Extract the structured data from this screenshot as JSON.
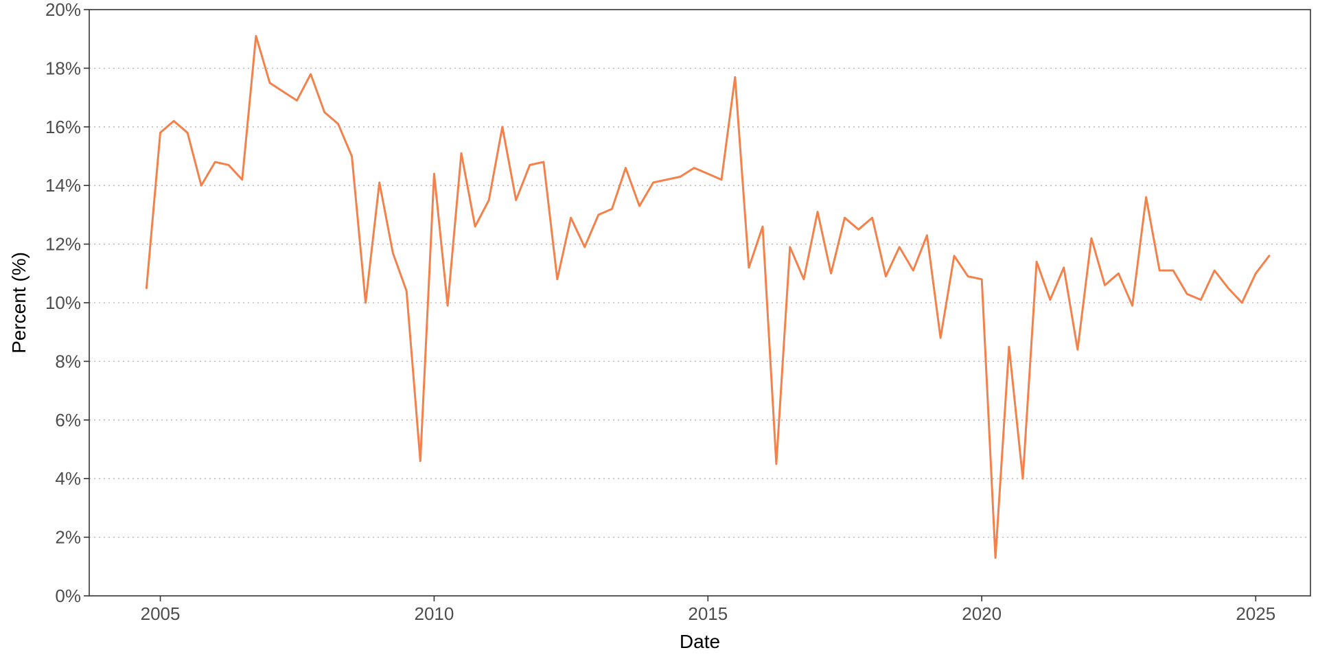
{
  "chart_data": {
    "type": "line",
    "xlabel": "Date",
    "ylabel": "Percent (%)",
    "xlim": [
      "2003-09-15",
      "2026-01-01"
    ],
    "ylim": [
      0,
      20
    ],
    "x_ticks": [
      {
        "date": "2005-01-01",
        "label": "2005"
      },
      {
        "date": "2010-01-01",
        "label": "2010"
      },
      {
        "date": "2015-01-01",
        "label": "2015"
      },
      {
        "date": "2020-01-01",
        "label": "2020"
      },
      {
        "date": "2025-01-01",
        "label": "2025"
      }
    ],
    "y_ticks": [
      {
        "value": 0,
        "label": "0%"
      },
      {
        "value": 2,
        "label": "2%"
      },
      {
        "value": 4,
        "label": "4%"
      },
      {
        "value": 6,
        "label": "6%"
      },
      {
        "value": 8,
        "label": "8%"
      },
      {
        "value": 10,
        "label": "10%"
      },
      {
        "value": 12,
        "label": "12%"
      },
      {
        "value": 14,
        "label": "14%"
      },
      {
        "value": 16,
        "label": "16%"
      },
      {
        "value": 18,
        "label": "18%"
      },
      {
        "value": 20,
        "label": "20%"
      }
    ],
    "grid": "horizontal-dotted",
    "legend": "none",
    "series": [
      {
        "color": "#f4804a",
        "x": [
          "2004-10-01",
          "2005-01-01",
          "2005-04-01",
          "2005-07-01",
          "2005-10-01",
          "2006-01-01",
          "2006-04-01",
          "2006-07-01",
          "2006-10-01",
          "2007-01-01",
          "2007-04-01",
          "2007-07-01",
          "2007-10-01",
          "2008-01-01",
          "2008-04-01",
          "2008-07-01",
          "2008-10-01",
          "2009-01-01",
          "2009-04-01",
          "2009-07-01",
          "2009-10-01",
          "2010-01-01",
          "2010-04-01",
          "2010-07-01",
          "2010-10-01",
          "2011-01-01",
          "2011-04-01",
          "2011-07-01",
          "2011-10-01",
          "2012-01-01",
          "2012-04-01",
          "2012-07-01",
          "2012-10-01",
          "2013-01-01",
          "2013-04-01",
          "2013-07-01",
          "2013-10-01",
          "2014-01-01",
          "2014-04-01",
          "2014-07-01",
          "2014-10-01",
          "2015-01-01",
          "2015-04-01",
          "2015-07-01",
          "2015-10-01",
          "2016-01-01",
          "2016-04-01",
          "2016-07-01",
          "2016-10-01",
          "2017-01-01",
          "2017-04-01",
          "2017-07-01",
          "2017-10-01",
          "2018-01-01",
          "2018-04-01",
          "2018-07-01",
          "2018-10-01",
          "2019-01-01",
          "2019-04-01",
          "2019-07-01",
          "2019-10-01",
          "2020-01-01",
          "2020-04-01",
          "2020-07-01",
          "2020-10-01",
          "2021-01-01",
          "2021-04-01",
          "2021-07-01",
          "2021-10-01",
          "2022-01-01",
          "2022-04-01",
          "2022-07-01",
          "2022-10-01",
          "2023-01-01",
          "2023-04-01",
          "2023-07-01",
          "2023-10-01",
          "2024-01-01",
          "2024-04-01",
          "2024-07-01",
          "2024-10-01",
          "2025-01-01",
          "2025-04-01"
        ],
        "values": [
          10.5,
          15.8,
          16.2,
          15.8,
          14.0,
          14.8,
          14.7,
          14.2,
          19.1,
          17.5,
          17.2,
          16.9,
          17.8,
          16.5,
          16.1,
          15.0,
          10.0,
          14.1,
          11.7,
          10.4,
          4.6,
          14.4,
          9.9,
          15.1,
          12.6,
          13.5,
          16.0,
          13.5,
          14.7,
          14.8,
          10.8,
          12.9,
          11.9,
          13.0,
          13.2,
          14.6,
          13.3,
          14.1,
          14.2,
          14.3,
          14.6,
          14.4,
          14.2,
          17.7,
          11.2,
          12.6,
          4.5,
          11.9,
          10.8,
          13.1,
          11.0,
          12.9,
          12.5,
          12.9,
          10.9,
          11.9,
          11.1,
          12.3,
          8.8,
          11.6,
          10.9,
          10.8,
          1.3,
          8.5,
          4.0,
          11.4,
          10.1,
          11.2,
          8.4,
          12.2,
          10.6,
          11.0,
          9.9,
          13.6,
          11.1,
          11.1,
          10.3,
          10.1,
          11.1,
          10.5,
          10.0,
          11.0,
          11.6
        ]
      }
    ]
  }
}
